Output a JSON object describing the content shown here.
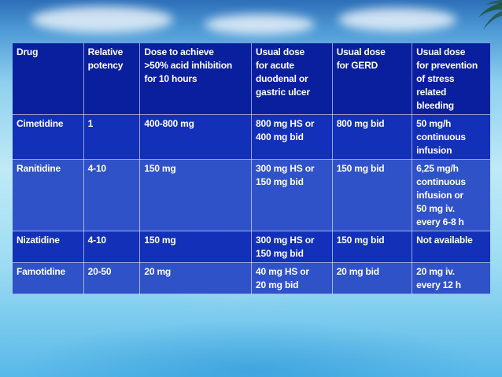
{
  "table": {
    "headers": [
      [
        "Drug"
      ],
      [
        "Relative",
        "potency"
      ],
      [
        "Dose to achieve",
        ">50% acid inhibition",
        "for 10 hours"
      ],
      [
        "Usual dose",
        "for acute",
        "duodenal or",
        "gastric ulcer"
      ],
      [
        "Usual dose",
        "for GERD"
      ],
      [
        "Usual dose",
        "for prevention",
        "of stress",
        "related",
        "bleeding"
      ]
    ],
    "rows": [
      [
        [
          "Cimetidine"
        ],
        [
          "1"
        ],
        [
          "400-800 mg"
        ],
        [
          "800 mg HS or",
          "400 mg bid"
        ],
        [
          "800 mg bid"
        ],
        [
          "50 mg/h",
          "continuous",
          "infusion"
        ]
      ],
      [
        [
          "Ranitidine"
        ],
        [
          "4-10"
        ],
        [
          "150 mg"
        ],
        [
          "300 mg HS or",
          "150 mg bid"
        ],
        [
          "150 mg bid"
        ],
        [
          "6,25 mg/h",
          "continuous",
          "infusion or",
          "50 mg iv.",
          "every 6-8 h"
        ]
      ],
      [
        [
          "Nizatidine"
        ],
        [
          "4-10"
        ],
        [
          "150 mg"
        ],
        [
          "300 mg HS or",
          "150 mg bid"
        ],
        [
          "150 mg bid"
        ],
        [
          "Not available"
        ]
      ],
      [
        [
          "Famotidine"
        ],
        [
          "20-50"
        ],
        [
          "20 mg"
        ],
        [
          "40 mg HS or",
          "20 mg bid"
        ],
        [
          "20 mg bid"
        ],
        [
          "20 mg iv.",
          "every 12 h"
        ]
      ]
    ]
  },
  "theme": {
    "header_bg": "#0a1f9e",
    "row_bg_a": "#1330b8",
    "row_bg_b": "#3052c8",
    "background_icon": "palm-leaf-icon"
  }
}
